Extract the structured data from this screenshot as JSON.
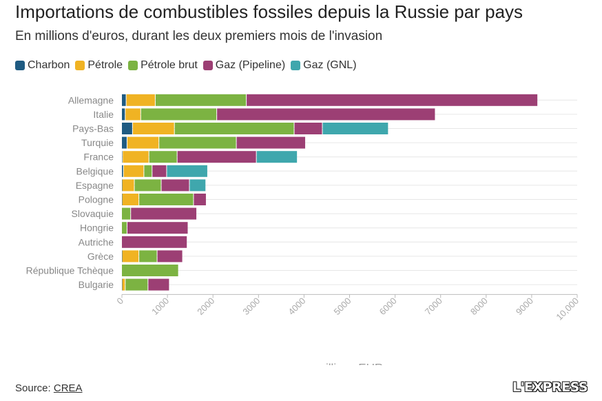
{
  "header": {
    "title": "Importations de combustibles fossiles depuis la Russie par pays",
    "subtitle": "En millions d'euros, durant les deux premiers mois de l'invasion"
  },
  "legend": [
    {
      "label": "Charbon",
      "color": "#1f5b82"
    },
    {
      "label": "Pétrole",
      "color": "#f0b323"
    },
    {
      "label": "Pétrole brut",
      "color": "#7cb342"
    },
    {
      "label": "Gaz (Pipeline)",
      "color": "#9c3f74"
    },
    {
      "label": "Gaz (GNL)",
      "color": "#3fa7ad"
    }
  ],
  "chart_data": {
    "type": "bar",
    "orientation": "horizontal",
    "stacked": true,
    "title": "Importations de combustibles fossiles depuis la Russie par pays",
    "xlabel": "millions EUR",
    "ylabel": "",
    "xlim": [
      0,
      10000
    ],
    "xticks": [
      {
        "value": 0,
        "label": "0"
      },
      {
        "value": 1000,
        "label": "1000"
      },
      {
        "value": 2000,
        "label": "2000"
      },
      {
        "value": 3000,
        "label": "3000"
      },
      {
        "value": 4000,
        "label": "4000"
      },
      {
        "value": 5000,
        "label": "5000"
      },
      {
        "value": 6000,
        "label": "6000"
      },
      {
        "value": 7000,
        "label": "7000"
      },
      {
        "value": 8000,
        "label": "8000"
      },
      {
        "value": 9000,
        "label": "9000"
      },
      {
        "value": 10000,
        "label": "10,000"
      }
    ],
    "categories": [
      "Allemagne",
      "Italie",
      "Pays-Bas",
      "Turquie",
      "France",
      "Belgique",
      "Espagne",
      "Pologne",
      "Slovaquie",
      "Hongrie",
      "Autriche",
      "Grèce",
      "République Tchèque",
      "Bulgarie"
    ],
    "series": [
      {
        "name": "Charbon",
        "color": "#1f5b82",
        "values": [
          100,
          80,
          240,
          120,
          20,
          40,
          10,
          10,
          0,
          0,
          0,
          10,
          0,
          10
        ]
      },
      {
        "name": "Pétrole",
        "color": "#f0b323",
        "values": [
          640,
          340,
          920,
          700,
          580,
          450,
          270,
          370,
          0,
          0,
          0,
          370,
          0,
          70
        ]
      },
      {
        "name": "Pétrole brut",
        "color": "#7cb342",
        "values": [
          2000,
          1670,
          2630,
          1700,
          620,
          180,
          590,
          1200,
          200,
          120,
          0,
          400,
          1250,
          500
        ]
      },
      {
        "name": "Gaz (Pipeline)",
        "color": "#9c3f74",
        "values": [
          6400,
          4800,
          620,
          1520,
          1740,
          320,
          620,
          280,
          1450,
          1340,
          1440,
          560,
          0,
          470
        ]
      },
      {
        "name": "Gaz (GNL)",
        "color": "#3fa7ad",
        "values": [
          0,
          0,
          1450,
          0,
          900,
          900,
          360,
          0,
          0,
          0,
          0,
          0,
          0,
          0
        ]
      }
    ]
  },
  "footer": {
    "source_prefix": "Source: ",
    "source_link": "CREA",
    "brand": "L'EXPRESS"
  }
}
